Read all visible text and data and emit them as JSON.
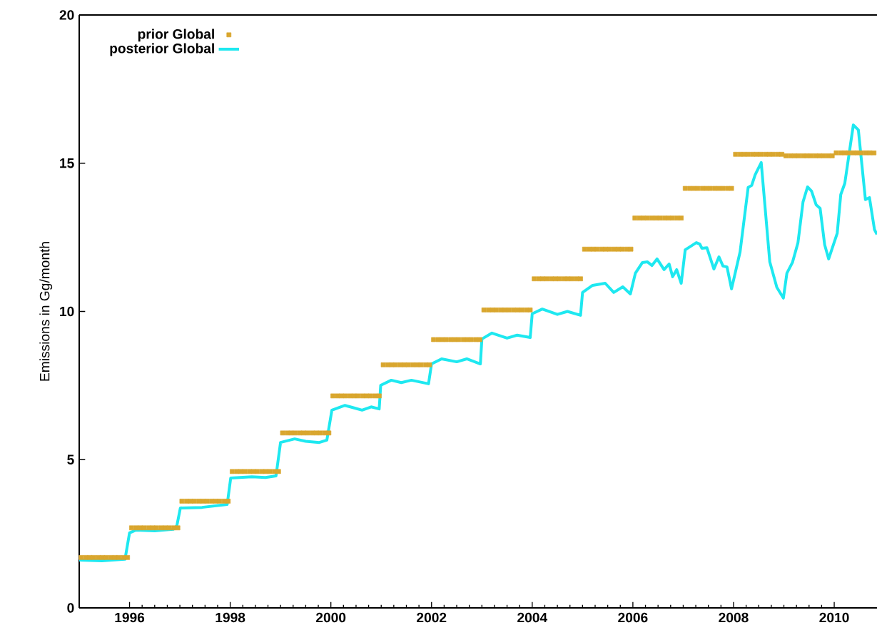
{
  "chart_data": {
    "type": "line",
    "ylabel": "Emissions in Gg/month",
    "xlim": [
      1995,
      2010.85
    ],
    "ylim": [
      0,
      20
    ],
    "xticks": [
      1996,
      1998,
      2000,
      2002,
      2004,
      2006,
      2008,
      2010
    ],
    "yticks": [
      0,
      5,
      10,
      15,
      20
    ],
    "legend": "top left",
    "series": [
      {
        "name": "prior Global",
        "type": "scatter",
        "marker": "square",
        "color": "#d9a62e",
        "x": [
          1995.04,
          1995.13,
          1995.21,
          1995.29,
          1995.38,
          1995.46,
          1995.54,
          1995.63,
          1995.71,
          1995.79,
          1995.88,
          1995.96,
          1996.04,
          1996.13,
          1996.21,
          1996.29,
          1996.38,
          1996.46,
          1996.54,
          1996.63,
          1996.71,
          1996.79,
          1996.88,
          1996.96,
          1997.04,
          1997.13,
          1997.21,
          1997.29,
          1997.38,
          1997.46,
          1997.54,
          1997.63,
          1997.71,
          1997.79,
          1997.88,
          1997.96,
          1998.04,
          1998.13,
          1998.21,
          1998.29,
          1998.38,
          1998.46,
          1998.54,
          1998.63,
          1998.71,
          1998.79,
          1998.88,
          1998.96,
          1999.04,
          1999.13,
          1999.21,
          1999.29,
          1999.38,
          1999.46,
          1999.54,
          1999.63,
          1999.71,
          1999.79,
          1999.88,
          1999.96,
          2000.04,
          2000.13,
          2000.21,
          2000.29,
          2000.38,
          2000.46,
          2000.54,
          2000.63,
          2000.71,
          2000.79,
          2000.88,
          2000.96,
          2001.04,
          2001.13,
          2001.21,
          2001.29,
          2001.38,
          2001.46,
          2001.54,
          2001.63,
          2001.71,
          2001.79,
          2001.88,
          2001.96,
          2002.04,
          2002.13,
          2002.21,
          2002.29,
          2002.38,
          2002.46,
          2002.54,
          2002.63,
          2002.71,
          2002.79,
          2002.88,
          2002.96,
          2003.04,
          2003.13,
          2003.21,
          2003.29,
          2003.38,
          2003.46,
          2003.54,
          2003.63,
          2003.71,
          2003.79,
          2003.88,
          2003.96,
          2004.04,
          2004.13,
          2004.21,
          2004.29,
          2004.38,
          2004.46,
          2004.54,
          2004.63,
          2004.71,
          2004.79,
          2004.88,
          2004.96,
          2005.04,
          2005.13,
          2005.21,
          2005.29,
          2005.38,
          2005.46,
          2005.54,
          2005.63,
          2005.71,
          2005.79,
          2005.88,
          2005.96,
          2006.04,
          2006.13,
          2006.21,
          2006.29,
          2006.38,
          2006.46,
          2006.54,
          2006.63,
          2006.71,
          2006.79,
          2006.88,
          2006.96,
          2007.04,
          2007.13,
          2007.21,
          2007.29,
          2007.38,
          2007.46,
          2007.54,
          2007.63,
          2007.71,
          2007.79,
          2007.88,
          2007.96,
          2008.04,
          2008.13,
          2008.21,
          2008.29,
          2008.38,
          2008.46,
          2008.54,
          2008.63,
          2008.71,
          2008.79,
          2008.88,
          2008.96,
          2009.04,
          2009.13,
          2009.21,
          2009.29,
          2009.38,
          2009.46,
          2009.54,
          2009.63,
          2009.71,
          2009.79,
          2009.88,
          2009.96,
          2010.04,
          2010.13,
          2010.21,
          2010.29,
          2010.38,
          2010.46,
          2010.54,
          2010.63,
          2010.71,
          2010.79
        ],
        "values": [
          1.7,
          1.7,
          1.7,
          1.7,
          1.7,
          1.7,
          1.7,
          1.7,
          1.7,
          1.7,
          1.7,
          1.7,
          2.7,
          2.7,
          2.7,
          2.7,
          2.7,
          2.7,
          2.7,
          2.7,
          2.7,
          2.7,
          2.7,
          2.7,
          3.6,
          3.6,
          3.6,
          3.6,
          3.6,
          3.6,
          3.6,
          3.6,
          3.6,
          3.6,
          3.6,
          3.6,
          4.6,
          4.6,
          4.6,
          4.6,
          4.6,
          4.6,
          4.6,
          4.6,
          4.6,
          4.6,
          4.6,
          4.6,
          5.9,
          5.9,
          5.9,
          5.9,
          5.9,
          5.9,
          5.9,
          5.9,
          5.9,
          5.9,
          5.9,
          5.9,
          7.15,
          7.15,
          7.15,
          7.15,
          7.15,
          7.15,
          7.15,
          7.15,
          7.15,
          7.15,
          7.15,
          7.15,
          8.2,
          8.2,
          8.2,
          8.2,
          8.2,
          8.2,
          8.2,
          8.2,
          8.2,
          8.2,
          8.2,
          8.2,
          9.05,
          9.05,
          9.05,
          9.05,
          9.05,
          9.05,
          9.05,
          9.05,
          9.05,
          9.05,
          9.05,
          9.05,
          10.05,
          10.05,
          10.05,
          10.05,
          10.05,
          10.05,
          10.05,
          10.05,
          10.05,
          10.05,
          10.05,
          10.05,
          11.1,
          11.1,
          11.1,
          11.1,
          11.1,
          11.1,
          11.1,
          11.1,
          11.1,
          11.1,
          11.1,
          11.1,
          12.1,
          12.1,
          12.1,
          12.1,
          12.1,
          12.1,
          12.1,
          12.1,
          12.1,
          12.1,
          12.1,
          12.1,
          13.15,
          13.15,
          13.15,
          13.15,
          13.15,
          13.15,
          13.15,
          13.15,
          13.15,
          13.15,
          13.15,
          13.15,
          14.15,
          14.15,
          14.15,
          14.15,
          14.15,
          14.15,
          14.15,
          14.15,
          14.15,
          14.15,
          14.15,
          14.15,
          15.3,
          15.3,
          15.3,
          15.3,
          15.3,
          15.3,
          15.3,
          15.3,
          15.3,
          15.3,
          15.3,
          15.3,
          15.25,
          15.25,
          15.25,
          15.25,
          15.25,
          15.25,
          15.25,
          15.25,
          15.25,
          15.25,
          15.25,
          15.25,
          15.35,
          15.35,
          15.35,
          15.35,
          15.35,
          15.35,
          15.35,
          15.35,
          15.35,
          15.35
        ]
      },
      {
        "name": "posterior Global",
        "marker": "none",
        "line_style": "solid",
        "color": "#1ee8f0",
        "x": [
          1995.0,
          1995.45,
          1995.91,
          1996.0,
          1996.12,
          1996.5,
          1996.87,
          1996.94,
          1997.01,
          1997.44,
          1997.94,
          1998.01,
          1998.43,
          1998.7,
          1998.91,
          1999.0,
          1999.28,
          1999.5,
          1999.77,
          1999.92,
          2000.02,
          2000.28,
          2000.45,
          2000.62,
          2000.8,
          2000.96,
          2000.99,
          2001.2,
          2001.4,
          2001.6,
          2001.94,
          2002.0,
          2002.2,
          2002.5,
          2002.7,
          2002.97,
          2003.0,
          2003.2,
          2003.5,
          2003.7,
          2003.96,
          2004.0,
          2004.2,
          2004.5,
          2004.7,
          2004.96,
          2005.0,
          2005.2,
          2005.45,
          2005.62,
          2005.8,
          2005.95,
          2006.05,
          2006.19,
          2006.29,
          2006.38,
          2006.48,
          2006.62,
          2006.72,
          2006.79,
          2006.87,
          2006.96,
          2007.04,
          2007.26,
          2007.33,
          2007.37,
          2007.47,
          2007.61,
          2007.71,
          2007.79,
          2007.87,
          2007.96,
          2008.13,
          2008.29,
          2008.36,
          2008.43,
          2008.55,
          2008.72,
          2008.86,
          2008.99,
          2009.06,
          2009.17,
          2009.28,
          2009.38,
          2009.47,
          2009.55,
          2009.64,
          2009.72,
          2009.81,
          2009.89,
          2010.06,
          2010.13,
          2010.21,
          2010.38,
          2010.48,
          2010.62,
          2010.7,
          2010.8,
          2010.85
        ],
        "values": [
          1.61,
          1.59,
          1.64,
          2.53,
          2.62,
          2.6,
          2.65,
          2.77,
          3.37,
          3.39,
          3.49,
          4.38,
          4.42,
          4.4,
          4.45,
          5.58,
          5.7,
          5.62,
          5.58,
          5.66,
          6.67,
          6.83,
          6.75,
          6.67,
          6.78,
          6.71,
          7.51,
          7.68,
          7.6,
          7.68,
          7.56,
          8.23,
          8.4,
          8.3,
          8.4,
          8.23,
          9.07,
          9.27,
          9.1,
          9.2,
          9.12,
          9.92,
          10.08,
          9.9,
          10.0,
          9.87,
          10.64,
          10.88,
          10.95,
          10.64,
          10.83,
          10.59,
          11.29,
          11.65,
          11.67,
          11.55,
          11.77,
          11.41,
          11.6,
          11.17,
          11.41,
          10.95,
          12.08,
          12.32,
          12.27,
          12.13,
          12.15,
          11.43,
          11.84,
          11.53,
          11.5,
          10.76,
          12.01,
          14.18,
          14.25,
          14.61,
          15.02,
          11.67,
          10.81,
          10.45,
          11.29,
          11.65,
          12.32,
          13.69,
          14.2,
          14.06,
          13.6,
          13.48,
          12.25,
          11.77,
          12.64,
          13.94,
          14.32,
          16.29,
          16.12,
          13.77,
          13.84,
          12.76,
          12.6
        ]
      }
    ]
  }
}
